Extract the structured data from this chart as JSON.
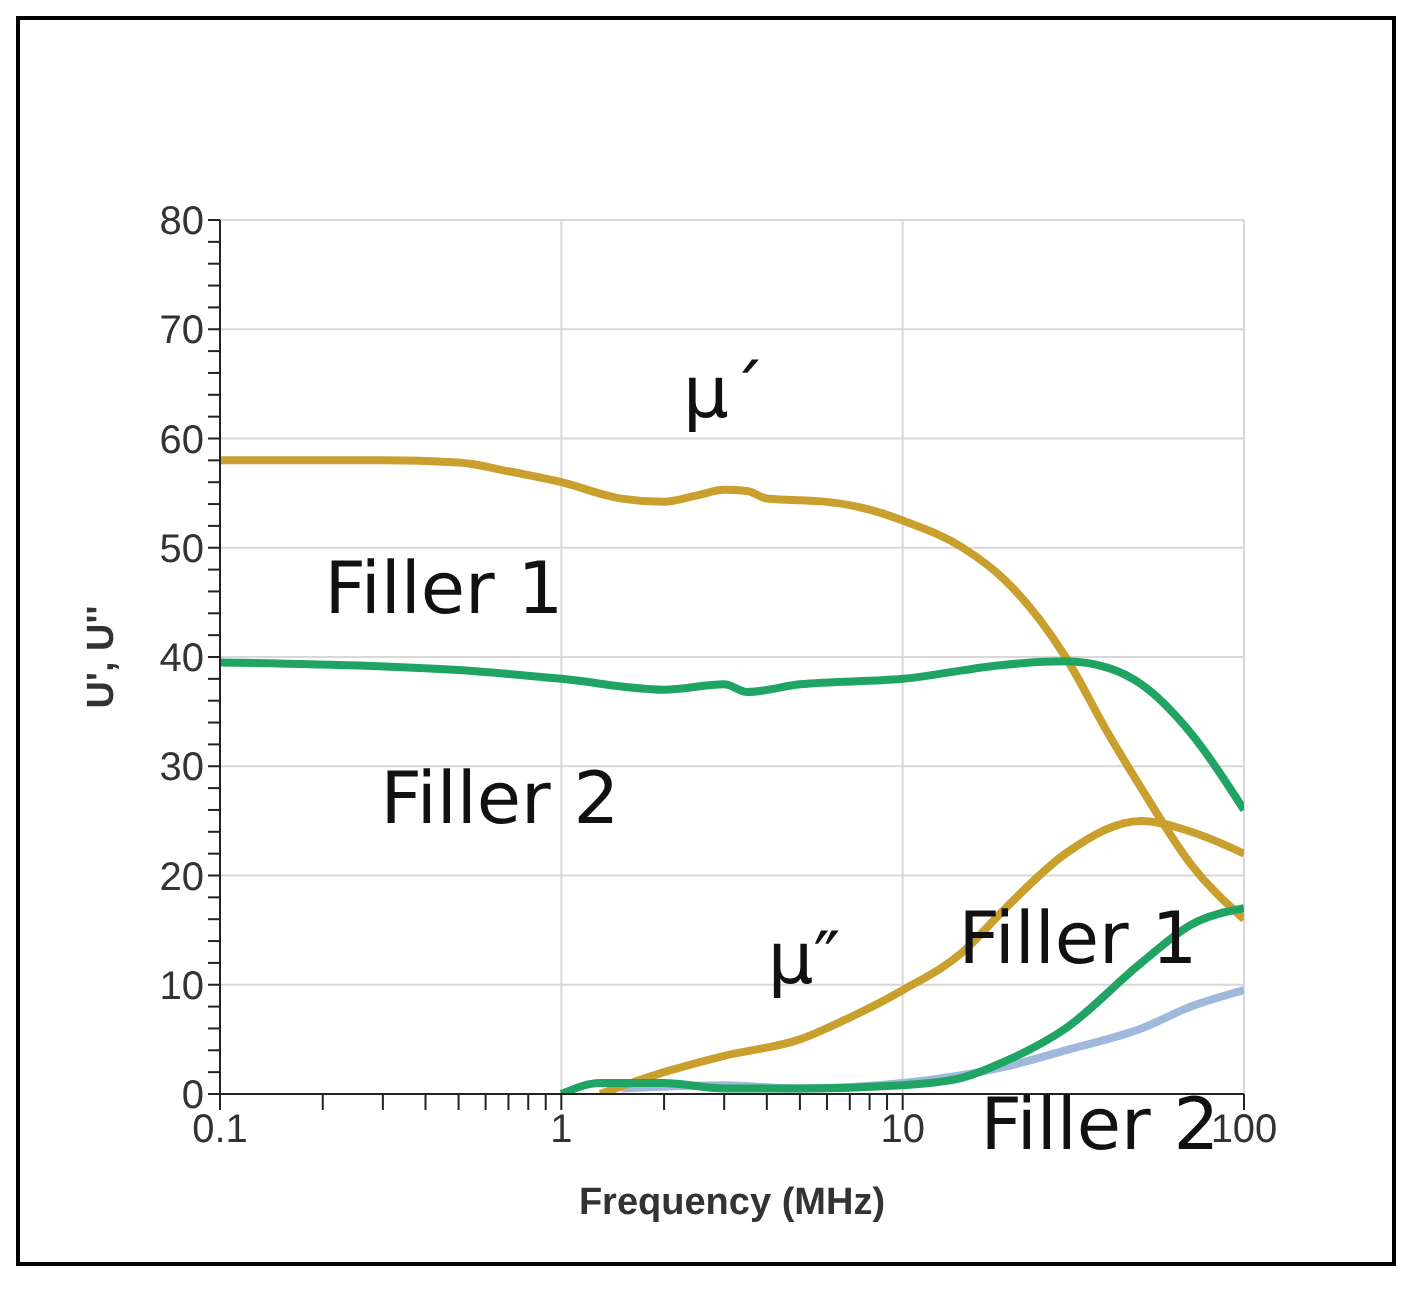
{
  "chart_data": {
    "type": "line",
    "xlabel": "Frequency (MHz)",
    "ylabel": "U', U''",
    "log": "x",
    "grid": true,
    "marker": "none",
    "line_style": "solid",
    "xlim": [
      0.1,
      100
    ],
    "ylim": [
      0,
      80
    ],
    "xticks": [
      0.1,
      {
        "value": 0.2,
        "label": null
      },
      {
        "value": 0.3,
        "label": null
      },
      {
        "value": 0.4,
        "label": null
      },
      {
        "value": 0.5,
        "label": null
      },
      {
        "value": 0.6,
        "label": null
      },
      {
        "value": 0.7,
        "label": null
      },
      {
        "value": 0.8,
        "label": null
      },
      {
        "value": 0.9,
        "label": null
      },
      1,
      {
        "value": 2,
        "label": null
      },
      {
        "value": 3,
        "label": null
      },
      {
        "value": 4,
        "label": null
      },
      {
        "value": 5,
        "label": null
      },
      {
        "value": 6,
        "label": null
      },
      {
        "value": 7,
        "label": null
      },
      {
        "value": 8,
        "label": null
      },
      {
        "value": 9,
        "label": null
      },
      10,
      100
    ],
    "yticks": [
      0,
      {
        "value": 2,
        "label": null
      },
      {
        "value": 4,
        "label": null
      },
      {
        "value": 6,
        "label": null
      },
      {
        "value": 8,
        "label": null
      },
      10,
      {
        "value": 12,
        "label": null
      },
      {
        "value": 14,
        "label": null
      },
      {
        "value": 16,
        "label": null
      },
      {
        "value": 18,
        "label": null
      },
      20,
      {
        "value": 22,
        "label": null
      },
      {
        "value": 24,
        "label": null
      },
      {
        "value": 26,
        "label": null
      },
      {
        "value": 28,
        "label": null
      },
      30,
      {
        "value": 32,
        "label": null
      },
      {
        "value": 34,
        "label": null
      },
      {
        "value": 36,
        "label": null
      },
      {
        "value": 38,
        "label": null
      },
      40,
      {
        "value": 42,
        "label": null
      },
      {
        "value": 44,
        "label": null
      },
      {
        "value": 46,
        "label": null
      },
      {
        "value": 48,
        "label": null
      },
      50,
      {
        "value": 52,
        "label": null
      },
      {
        "value": 54,
        "label": null
      },
      {
        "value": 56,
        "label": null
      },
      {
        "value": 58,
        "label": null
      },
      60,
      {
        "value": 62,
        "label": null
      },
      {
        "value": 64,
        "label": null
      },
      {
        "value": 66,
        "label": null
      },
      {
        "value": 68,
        "label": null
      },
      70,
      {
        "value": 72,
        "label": null
      },
      {
        "value": 74,
        "label": null
      },
      {
        "value": 76,
        "label": null
      },
      {
        "value": 78,
        "label": null
      },
      80
    ],
    "series": [
      {
        "color": "#c9a02e",
        "x": [
          0.1,
          0.3,
          0.5,
          0.7,
          1,
          1.5,
          2,
          2.5,
          3,
          3.5,
          4,
          6,
          8,
          10,
          15,
          20,
          30,
          40,
          50,
          70,
          100
        ],
        "values": [
          58,
          58,
          57.8,
          57,
          56,
          54.5,
          54.2,
          54.8,
          55.3,
          55.2,
          54.5,
          54.2,
          53.5,
          52.5,
          50,
          47,
          40,
          33,
          28,
          21,
          16
        ]
      },
      {
        "color": "#1fa463",
        "x": [
          0.1,
          0.5,
          1,
          2,
          3,
          3.5,
          5,
          10,
          20,
          30,
          40,
          50,
          70,
          100
        ],
        "values": [
          39.5,
          38.8,
          38,
          37,
          37.5,
          36.8,
          37.5,
          38,
          39.3,
          39.6,
          39,
          37.5,
          33,
          26
        ]
      },
      {
        "color": "#9fb8dc",
        "x": [
          1.5,
          3,
          5,
          10,
          20,
          30,
          50,
          70,
          100
        ],
        "values": [
          0.5,
          0.8,
          0.5,
          1,
          2.5,
          4,
          6,
          8,
          9.5
        ]
      },
      {
        "color": "#c9a02e",
        "x": [
          1.3,
          2,
          3,
          5,
          7,
          10,
          15,
          20,
          30,
          50,
          70,
          100
        ],
        "values": [
          0,
          2,
          3.5,
          5,
          7,
          9.5,
          13,
          17,
          22,
          25,
          24,
          22
        ]
      },
      {
        "color": "#1fa463",
        "x": [
          1,
          1.3,
          2,
          3,
          5,
          10,
          15,
          20,
          30,
          50,
          70,
          100
        ],
        "values": [
          0,
          1,
          1,
          0.5,
          0.5,
          0.8,
          1.5,
          3,
          6,
          12,
          15.5,
          17
        ]
      }
    ],
    "annotations": [
      "μ´",
      "Filler 1",
      "Filler 2",
      "μ″",
      "Filler 1",
      "Filler 2"
    ]
  }
}
